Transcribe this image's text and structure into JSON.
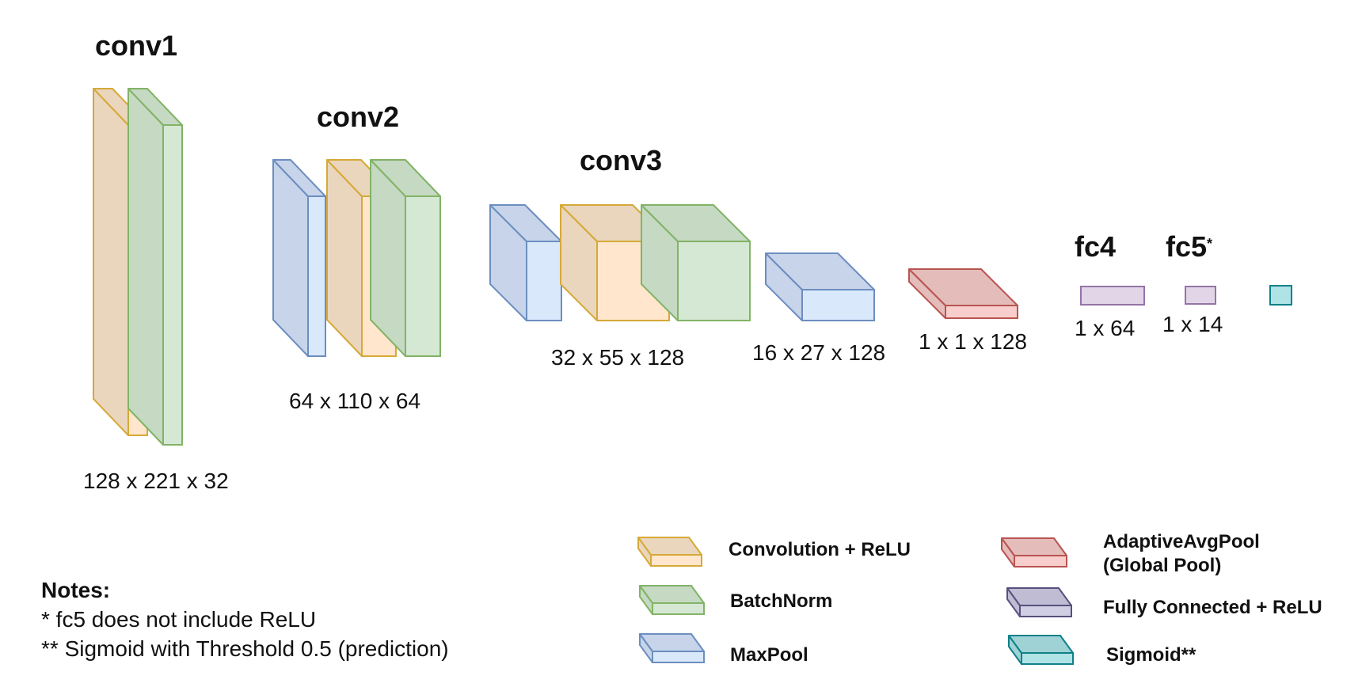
{
  "colors": {
    "conv": {
      "front": "#ffe6cc",
      "side": "#ead6bd",
      "stroke": "#d6a938"
    },
    "bn": {
      "front": "#d5e8d4",
      "side": "#c5d9c3",
      "stroke": "#82b366"
    },
    "pool": {
      "front": "#dae8fc",
      "side": "#c7d4ea",
      "stroke": "#6c8ebf"
    },
    "gap": {
      "front": "#f8cecc",
      "side": "#e4bcba",
      "stroke": "#b85450"
    },
    "fc": {
      "front": "#e1d5e7",
      "side": "#cfc3d6",
      "stroke": "#9673a6"
    },
    "sigmoid": {
      "front": "#b0e3e6",
      "side": "#9fd2d5",
      "stroke": "#0e8088"
    },
    "fc_legend": {
      "front": "#d0cee2",
      "side": "#bfbcd3",
      "stroke": "#56517e"
    }
  },
  "layers": {
    "conv1": {
      "title": "conv1",
      "dims": "128 x 221 x 32"
    },
    "conv2": {
      "title": "conv2",
      "dims": "64 x 110 x 64"
    },
    "conv3": {
      "title": "conv3",
      "dims": "32 x 55 x 128"
    },
    "pool3": {
      "dims": "16 x 27 x 128"
    },
    "gap": {
      "dims": "1 x 1 x 128"
    },
    "fc4": {
      "title": "fc4",
      "dims": "1 x 64"
    },
    "fc5": {
      "title": "fc5",
      "title_mark": "*",
      "dims": "1 x 14"
    }
  },
  "legend": {
    "conv": "Convolution + ReLU",
    "bn": "BatchNorm",
    "pool": "MaxPool",
    "gap_line1": "AdaptiveAvgPool",
    "gap_line2": "(Global Pool)",
    "fc": "Fully Connected + ReLU",
    "sigmoid": "Sigmoid**"
  },
  "notes": {
    "heading": "Notes:",
    "line1": "* fc5 does not include ReLU",
    "line2": "** Sigmoid with Threshold 0.5 (prediction)"
  }
}
